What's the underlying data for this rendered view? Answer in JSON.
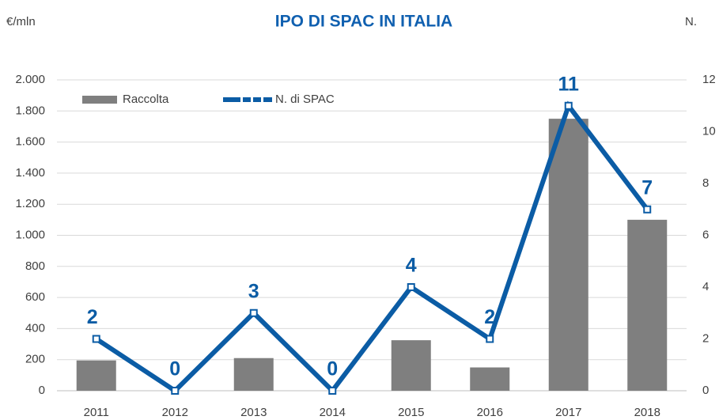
{
  "chart_data": {
    "type": "bar-line",
    "title": "IPO DI SPAC IN ITALIA",
    "y_label": "€/mln",
    "y2_label": "N.",
    "categories": [
      "2011",
      "2012",
      "2013",
      "2014",
      "2015",
      "2016",
      "2017",
      "2018"
    ],
    "series": [
      {
        "name": "Raccolta",
        "type": "bar",
        "color": "#7f7f7f",
        "values": [
          195,
          0,
          210,
          0,
          325,
          150,
          1750,
          1100
        ]
      },
      {
        "name": "N. di SPAC",
        "type": "line",
        "axis": "y2",
        "color": "#0b5ca5",
        "values": [
          2,
          0,
          3,
          0,
          4,
          2,
          11,
          7
        ]
      }
    ],
    "ylim": [
      0,
      2000
    ],
    "yticks": [
      0,
      {
        "value": 200,
        "label": "200"
      },
      400,
      600,
      800,
      {
        "value": 1000,
        "label": "1.000"
      },
      {
        "value": 1200,
        "label": "1.200"
      },
      {
        "value": 1400,
        "label": "1.400"
      },
      {
        "value": 1600,
        "label": "1.600"
      },
      {
        "value": 1800,
        "label": "1.800"
      },
      {
        "value": 2000,
        "label": "2.000"
      }
    ],
    "y2lim": [
      0,
      12
    ],
    "y2ticks": [
      0,
      2,
      4,
      6,
      8,
      10,
      12
    ],
    "grid": true,
    "legend": "top-left"
  }
}
